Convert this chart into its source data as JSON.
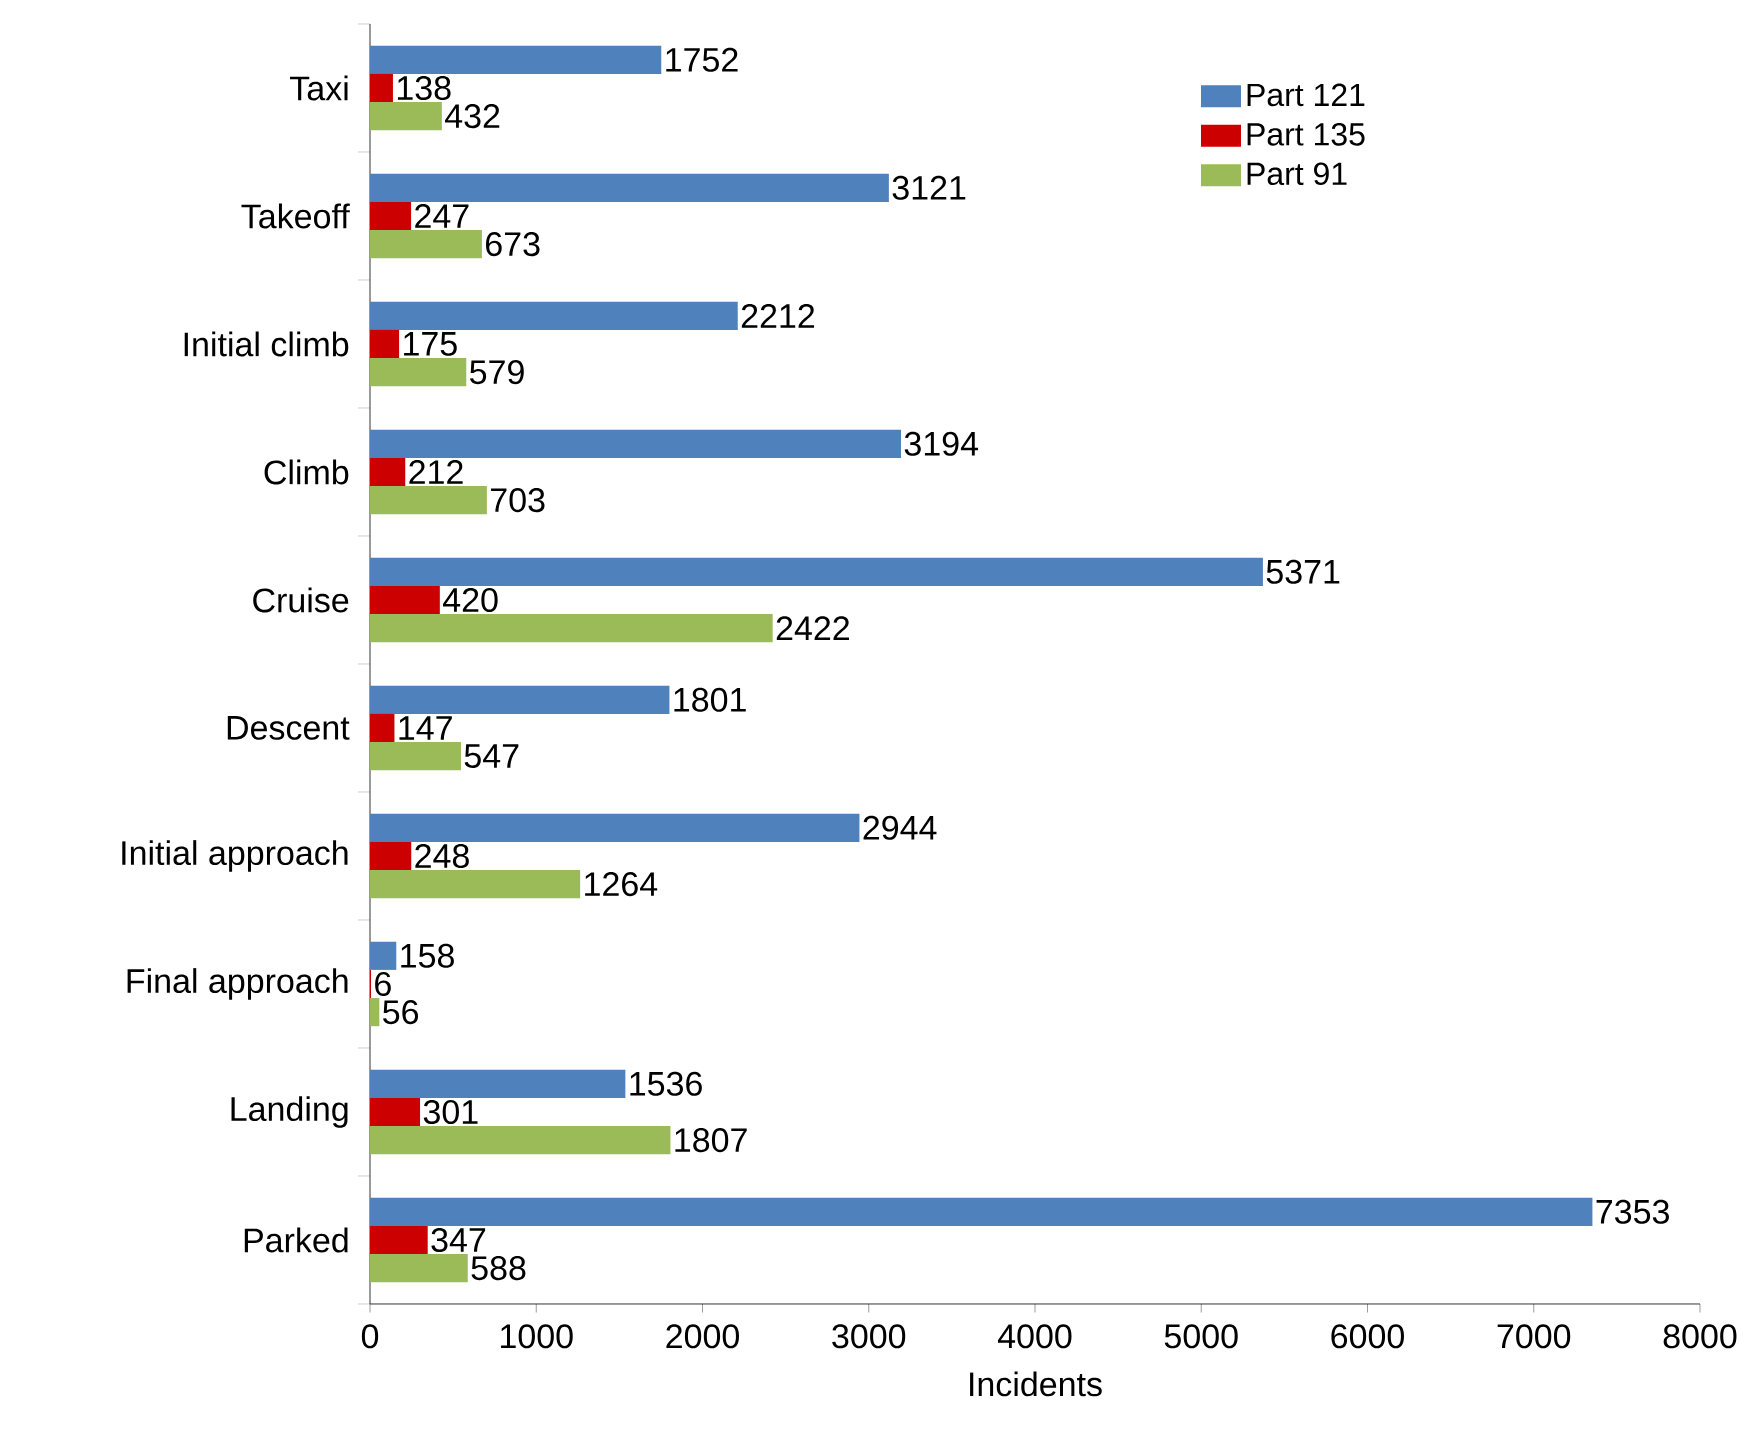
{
  "chart_data": {
    "type": "bar",
    "orientation": "horizontal",
    "xlabel": "Incidents",
    "categories": [
      "Taxi",
      "Takeoff",
      "Initial climb",
      "Climb",
      "Cruise",
      "Descent",
      "Initial approach",
      "Final approach",
      "Landing",
      "Parked"
    ],
    "series": [
      {
        "name": "Part 121",
        "color": "#4f81bd",
        "values": [
          1752,
          3121,
          2212,
          3194,
          5371,
          1801,
          2944,
          158,
          1536,
          7353
        ]
      },
      {
        "name": "Part 135",
        "color": "#cc0000",
        "values": [
          138,
          247,
          175,
          212,
          420,
          147,
          248,
          6,
          301,
          347
        ]
      },
      {
        "name": "Part 91",
        "color": "#9bbb59",
        "values": [
          432,
          673,
          579,
          703,
          2422,
          547,
          1264,
          56,
          1807,
          588
        ]
      }
    ],
    "xlim": [
      0,
      8000
    ],
    "xticks": [
      0,
      1000,
      2000,
      3000,
      4000,
      5000,
      6000,
      7000,
      8000
    ],
    "data_labels": true,
    "legend": "top right",
    "grid": false
  }
}
